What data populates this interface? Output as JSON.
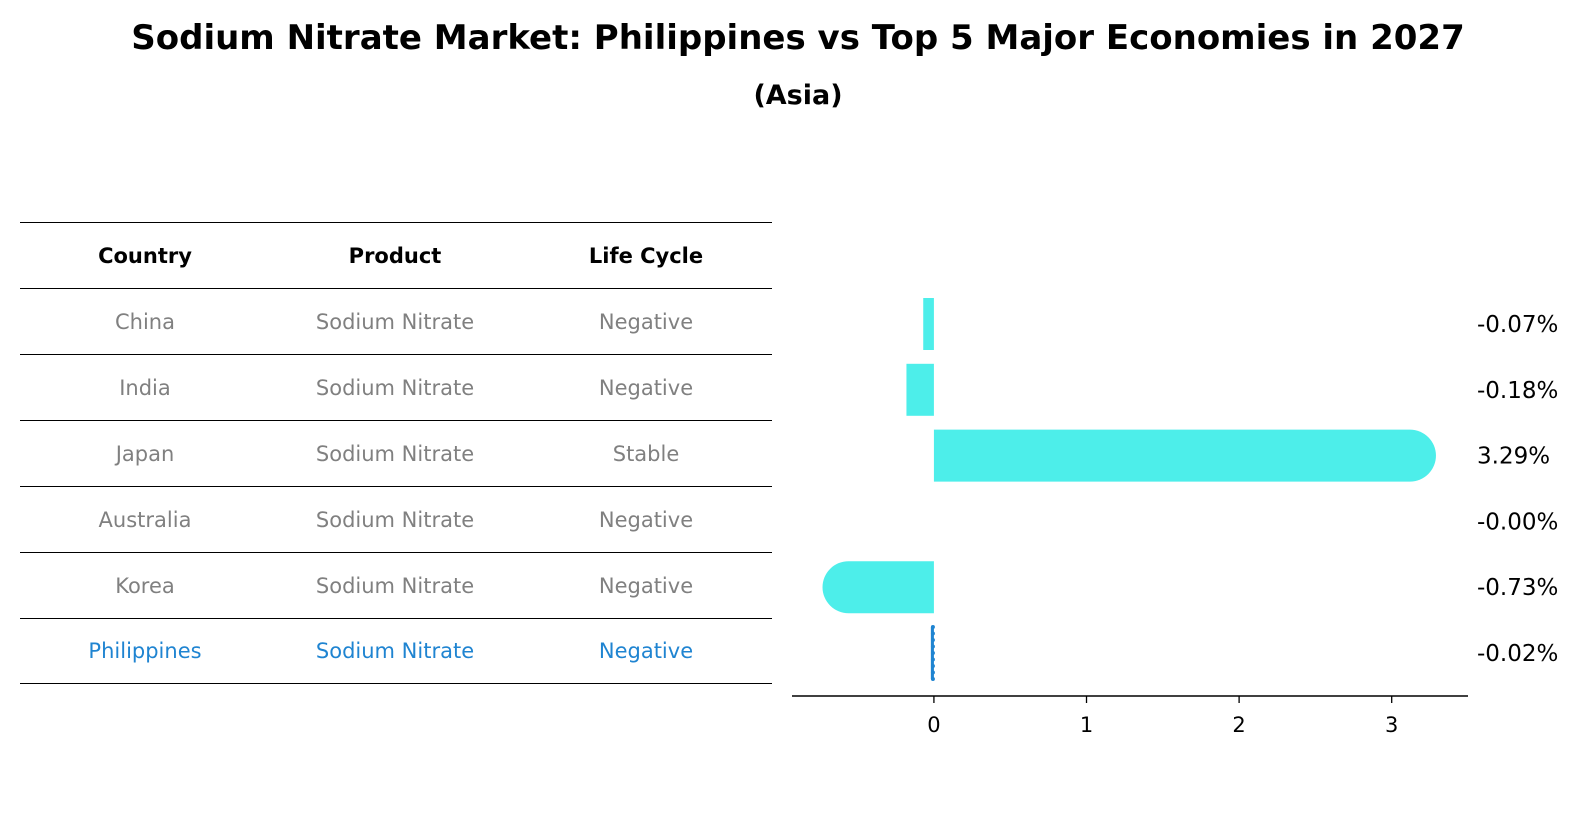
{
  "title": "Sodium Nitrate Market: Philippines vs Top 5 Major Economies in 2027",
  "subtitle": "(Asia)",
  "table": {
    "headers": [
      "Country",
      "Product",
      "Life Cycle"
    ],
    "rows": [
      {
        "country": "China",
        "product": "Sodium Nitrate",
        "life_cycle": "Negative"
      },
      {
        "country": "India",
        "product": "Sodium Nitrate",
        "life_cycle": "Negative"
      },
      {
        "country": "Japan",
        "product": "Sodium Nitrate",
        "life_cycle": "Stable"
      },
      {
        "country": "Australia",
        "product": "Sodium Nitrate",
        "life_cycle": "Negative"
      },
      {
        "country": "Korea",
        "product": "Sodium Nitrate",
        "life_cycle": "Negative"
      },
      {
        "country": "Philippines",
        "product": "Sodium Nitrate",
        "life_cycle": "Negative"
      }
    ],
    "highlight_row": 5
  },
  "colors": {
    "bar": "#4deeea",
    "highlight": "#1f84d1",
    "muted_text": "#808080"
  },
  "chart_data": {
    "type": "bar",
    "orientation": "horizontal",
    "categories": [
      "China",
      "India",
      "Japan",
      "Australia",
      "Korea",
      "Philippines"
    ],
    "values": [
      -0.07,
      -0.18,
      3.29,
      -0.0,
      -0.73,
      -0.02
    ],
    "value_labels": [
      "-0.07%",
      "-0.18%",
      "3.29%",
      "-0.00%",
      "-0.73%",
      "-0.02%"
    ],
    "xlim": [
      -0.93,
      3.5
    ],
    "xticks": [
      0,
      1,
      2,
      3
    ],
    "xtick_labels": [
      "0",
      "1",
      "2",
      "3"
    ],
    "grid": false
  }
}
